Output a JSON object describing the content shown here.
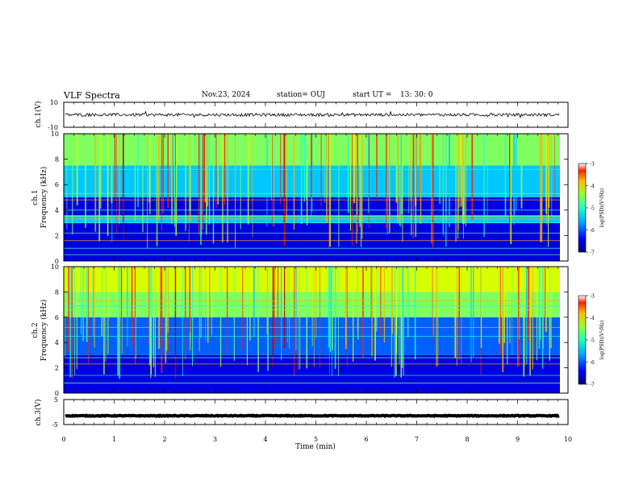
{
  "header": {
    "title": "VLF Spectra",
    "date": "Nov.23, 2024",
    "station": "station= OUJ",
    "start_label": "start  UT  =",
    "start_time": "13: 30: 0"
  },
  "chart_data": [
    {
      "type": "line",
      "title": "ch.1 waveform",
      "ylabel": "ch.1(V)",
      "ylim": [
        -10,
        10
      ],
      "yticks": [
        "10",
        "-10"
      ],
      "series": [
        {
          "name": "ch.1",
          "mean_value": 0,
          "amplitude": 1.2
        }
      ]
    },
    {
      "type": "heatmap",
      "title": "ch.1 spectrogram",
      "ylabel": "ch.1\nFrequency (kHz)",
      "ylabel_lines": [
        "ch.1",
        "Frequency  (kHz)"
      ],
      "ylim": [
        0,
        10
      ],
      "yticks": [
        "0",
        "2",
        "4",
        "6",
        "8",
        "10"
      ],
      "xlim": [
        0,
        10
      ],
      "colorbar": {
        "label": "log(PSD)(V²/Hz)",
        "range": [
          -7,
          -3
        ],
        "ticks": [
          "-3",
          "-4",
          "-5",
          "-6",
          "-7"
        ]
      },
      "bands": [
        {
          "from_khz": 0,
          "to_khz": 3,
          "log_psd": -6.3
        },
        {
          "from_khz": 3,
          "to_khz": 3.6,
          "log_psd": -5.8
        },
        {
          "from_khz": 3.6,
          "to_khz": 5,
          "log_psd": -6.6
        },
        {
          "from_khz": 5,
          "to_khz": 7.5,
          "log_psd": -5.6
        },
        {
          "from_khz": 7.5,
          "to_khz": 10,
          "log_psd": -4.8
        }
      ],
      "lines_khz": [
        0.5,
        1.0,
        1.6,
        2.2,
        3.0,
        3.3,
        3.5,
        4.0,
        4.8,
        5.3,
        7.2
      ]
    },
    {
      "type": "heatmap",
      "title": "ch.2 spectrogram",
      "ylabel_lines": [
        "ch.2",
        "Frequency  (kHz)"
      ],
      "ylim": [
        0,
        10
      ],
      "yticks": [
        "0",
        "2",
        "4",
        "6",
        "8",
        "10"
      ],
      "xlim": [
        0,
        10
      ],
      "colorbar": {
        "label": "log(PSD)(V²/Hz)",
        "range": [
          -7,
          -3
        ],
        "ticks": [
          "-3",
          "-4",
          "-5",
          "-6",
          "-7"
        ]
      },
      "bands": [
        {
          "from_khz": 0,
          "to_khz": 3,
          "log_psd": -6.4
        },
        {
          "from_khz": 3,
          "to_khz": 6,
          "log_psd": -5.9
        },
        {
          "from_khz": 6,
          "to_khz": 8,
          "log_psd": -5.0
        },
        {
          "from_khz": 8,
          "to_khz": 10,
          "log_psd": -4.3
        }
      ],
      "lines_khz": [
        0.8,
        1.4,
        2.3,
        2.8,
        4.5,
        5.2,
        6.6,
        6.9,
        7.3
      ]
    },
    {
      "type": "line",
      "title": "ch.3 waveform",
      "ylabel": "ch.3(V)",
      "ylim": [
        -5,
        5
      ],
      "yticks": [
        "5",
        "0",
        "-5"
      ],
      "series": [
        {
          "name": "ch.3",
          "mean_value": -1.5,
          "amplitude": 0.15
        }
      ]
    }
  ],
  "x_axis": {
    "label": "Time  (min)",
    "range": [
      0,
      10
    ],
    "ticks": [
      "0",
      "1",
      "2",
      "3",
      "4",
      "5",
      "6",
      "7",
      "8",
      "9",
      "10"
    ]
  },
  "colormap": [
    "#00007a",
    "#0000e0",
    "#0060ff",
    "#00c8ff",
    "#20ffd0",
    "#80ff60",
    "#d8ff00",
    "#ffb000",
    "#ff2000",
    "#b00000"
  ]
}
